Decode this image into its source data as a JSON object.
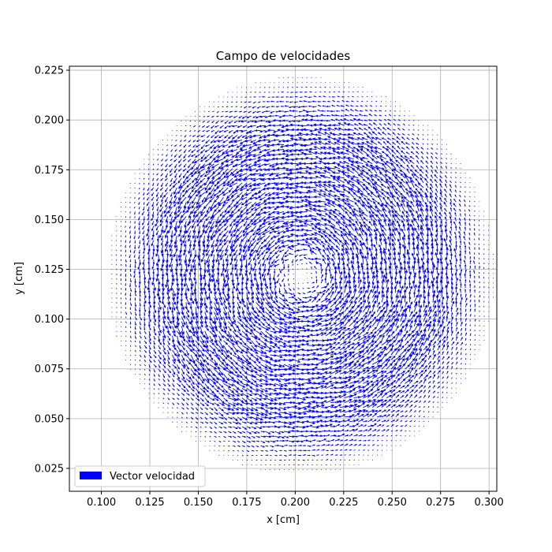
{
  "chart_data": {
    "type": "quiver",
    "title": "Campo de velocidades",
    "xlabel": "x [cm]",
    "ylabel": "y [cm]",
    "xlim": [
      0.0835,
      0.304
    ],
    "ylim": [
      0.0135,
      0.227
    ],
    "x_ticks": [
      "0.100",
      "0.125",
      "0.150",
      "0.175",
      "0.200",
      "0.225",
      "0.250",
      "0.275",
      "0.300"
    ],
    "y_ticks": [
      "0.025",
      "0.050",
      "0.075",
      "0.100",
      "0.125",
      "0.150",
      "0.175",
      "0.200",
      "0.225"
    ],
    "grid": true,
    "legend": {
      "position": "lower-left",
      "entries": [
        {
          "label": "Vector velocidad",
          "color": "#0000ff"
        }
      ]
    },
    "series": [
      {
        "name": "Vector velocidad",
        "color": "#0000ff",
        "field": "counter-clockwise vortex",
        "center": [
          0.203,
          0.122
        ],
        "domain_radius": 0.1,
        "grid_spacing": 0.0024
      }
    ]
  }
}
